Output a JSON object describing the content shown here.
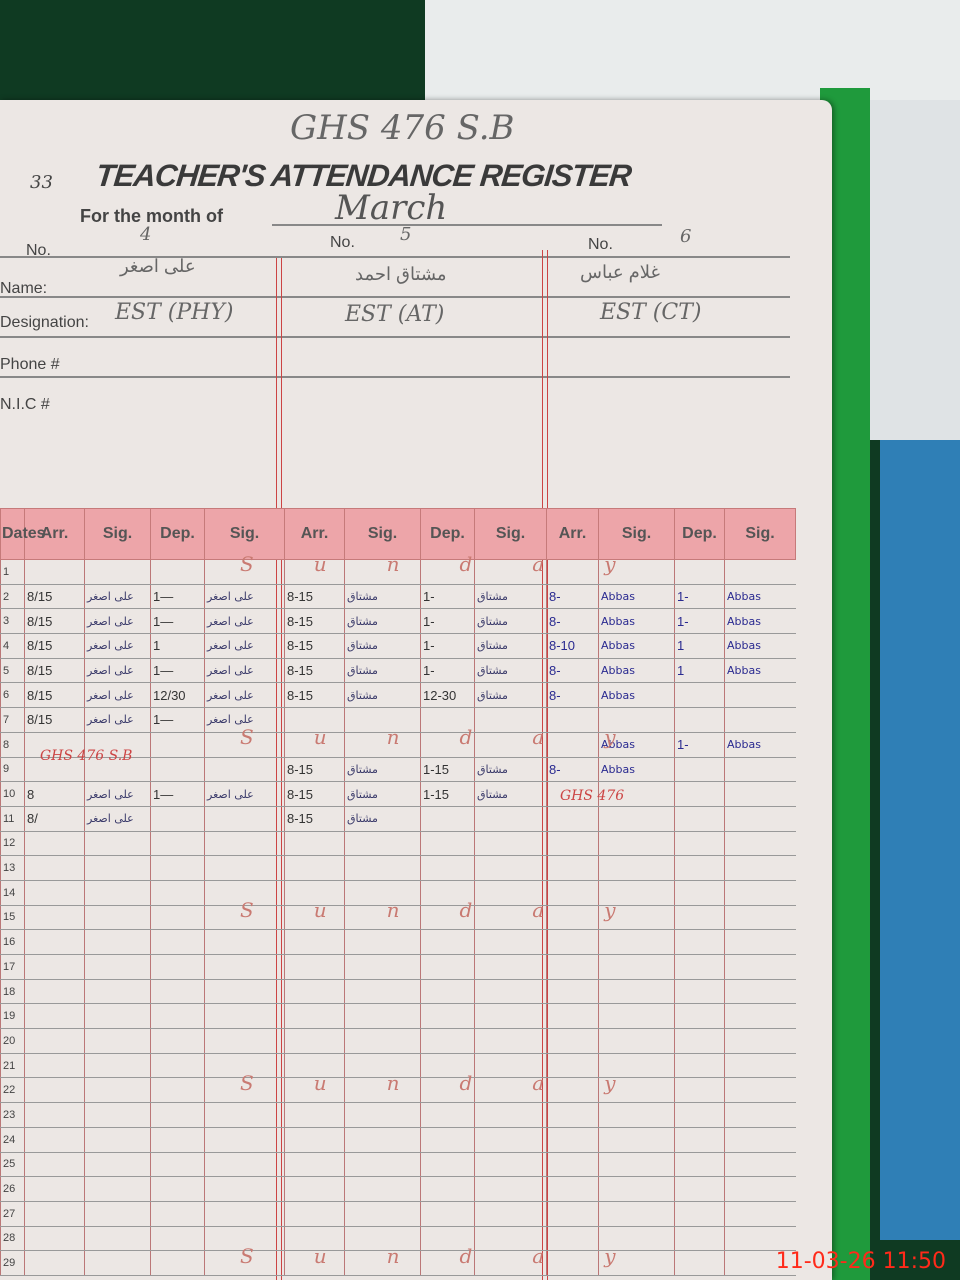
{
  "register": {
    "school": "GHS 476 S.B",
    "page_number": "33",
    "title": "TEACHER'S ATTENDANCE REGISTER",
    "month_label": "For the month of",
    "month": "March",
    "no_label": "No.",
    "name_label": "Name:",
    "designation_label": "Designation:",
    "phone_label": "Phone #",
    "nic_label": "N.I.C #",
    "date_header": "Dates",
    "teachers": [
      {
        "no": "4",
        "name": "علی اصغر",
        "designation": "EST (PHY)"
      },
      {
        "no": "5",
        "name": "مشتاق احمد",
        "designation": "EST (AT)"
      },
      {
        "no": "6",
        "name": "غلام عباس",
        "designation": "EST (CT)"
      }
    ],
    "columns": [
      "Arr.",
      "Sig.",
      "Dep.",
      "Sig."
    ],
    "rows": [
      {
        "d": "1",
        "c": [
          "",
          "",
          "",
          "",
          "",
          "",
          "",
          "",
          "",
          "",
          "",
          ""
        ]
      },
      {
        "d": "2",
        "c": [
          "8/15",
          "علی اصغر",
          "1—",
          "علی اصغر",
          "8-15",
          "مشتاق",
          "1-",
          "مشتاق",
          "8-",
          "Abbas",
          "1-",
          "Abbas"
        ]
      },
      {
        "d": "3",
        "c": [
          "8/15",
          "علی اصغر",
          "1—",
          "علی اصغر",
          "8-15",
          "مشتاق",
          "1-",
          "مشتاق",
          "8-",
          "Abbas",
          "1-",
          "Abbas"
        ]
      },
      {
        "d": "4",
        "c": [
          "8/15",
          "علی اصغر",
          "1",
          "علی اصغر",
          "8-15",
          "مشتاق",
          "1-",
          "مشتاق",
          "8-10",
          "Abbas",
          "1",
          "Abbas"
        ]
      },
      {
        "d": "5",
        "c": [
          "8/15",
          "علی اصغر",
          "1—",
          "علی اصغر",
          "8-15",
          "مشتاق",
          "1-",
          "مشتاق",
          "8-",
          "Abbas",
          "1",
          "Abbas"
        ]
      },
      {
        "d": "6",
        "c": [
          "8/15",
          "علی اصغر",
          "12/30",
          "علی اصغر",
          "8-15",
          "مشتاق",
          "12-30",
          "مشتاق",
          "8-",
          "Abbas",
          "",
          ""
        ]
      },
      {
        "d": "7",
        "c": [
          "8/15",
          "علی اصغر",
          "1—",
          "علی اصغر",
          "",
          "",
          "",
          "",
          "",
          "",
          "",
          ""
        ]
      },
      {
        "d": "8",
        "c": [
          "",
          "",
          "",
          "",
          "",
          "",
          "",
          "",
          "",
          "Abbas",
          "1-",
          "Abbas"
        ]
      },
      {
        "d": "9",
        "c": [
          "",
          "",
          "",
          "",
          "8-15",
          "مشتاق",
          "1-15",
          "مشتاق",
          "8-",
          "Abbas",
          "",
          ""
        ]
      },
      {
        "d": "10",
        "c": [
          "8",
          "علی اصغر",
          "1—",
          "علی اصغر",
          "8-15",
          "مشتاق",
          "1-15",
          "مشتاق",
          "",
          "",
          "",
          ""
        ]
      },
      {
        "d": "11",
        "c": [
          "8/",
          "علی اصغر",
          "",
          "",
          "8-15",
          "مشتاق",
          "",
          "",
          "",
          "",
          "",
          ""
        ]
      },
      {
        "d": "12",
        "c": [
          "",
          "",
          "",
          "",
          "",
          "",
          "",
          "",
          "",
          "",
          "",
          ""
        ]
      },
      {
        "d": "13",
        "c": [
          "",
          "",
          "",
          "",
          "",
          "",
          "",
          "",
          "",
          "",
          "",
          ""
        ]
      },
      {
        "d": "14",
        "c": [
          "",
          "",
          "",
          "",
          "",
          "",
          "",
          "",
          "",
          "",
          "",
          ""
        ]
      },
      {
        "d": "15",
        "c": [
          "",
          "",
          "",
          "",
          "",
          "",
          "",
          "",
          "",
          "",
          "",
          ""
        ]
      },
      {
        "d": "16",
        "c": [
          "",
          "",
          "",
          "",
          "",
          "",
          "",
          "",
          "",
          "",
          "",
          ""
        ]
      },
      {
        "d": "17",
        "c": [
          "",
          "",
          "",
          "",
          "",
          "",
          "",
          "",
          "",
          "",
          "",
          ""
        ]
      },
      {
        "d": "18",
        "c": [
          "",
          "",
          "",
          "",
          "",
          "",
          "",
          "",
          "",
          "",
          "",
          ""
        ]
      },
      {
        "d": "19",
        "c": [
          "",
          "",
          "",
          "",
          "",
          "",
          "",
          "",
          "",
          "",
          "",
          ""
        ]
      },
      {
        "d": "20",
        "c": [
          "",
          "",
          "",
          "",
          "",
          "",
          "",
          "",
          "",
          "",
          "",
          ""
        ]
      },
      {
        "d": "21",
        "c": [
          "",
          "",
          "",
          "",
          "",
          "",
          "",
          "",
          "",
          "",
          "",
          ""
        ]
      },
      {
        "d": "22",
        "c": [
          "",
          "",
          "",
          "",
          "",
          "",
          "",
          "",
          "",
          "",
          "",
          ""
        ]
      },
      {
        "d": "23",
        "c": [
          "",
          "",
          "",
          "",
          "",
          "",
          "",
          "",
          "",
          "",
          "",
          ""
        ]
      },
      {
        "d": "24",
        "c": [
          "",
          "",
          "",
          "",
          "",
          "",
          "",
          "",
          "",
          "",
          "",
          ""
        ]
      },
      {
        "d": "25",
        "c": [
          "",
          "",
          "",
          "",
          "",
          "",
          "",
          "",
          "",
          "",
          "",
          ""
        ]
      },
      {
        "d": "26",
        "c": [
          "",
          "",
          "",
          "",
          "",
          "",
          "",
          "",
          "",
          "",
          "",
          ""
        ]
      },
      {
        "d": "27",
        "c": [
          "",
          "",
          "",
          "",
          "",
          "",
          "",
          "",
          "",
          "",
          "",
          ""
        ]
      },
      {
        "d": "28",
        "c": [
          "",
          "",
          "",
          "",
          "",
          "",
          "",
          "",
          "",
          "",
          "",
          ""
        ]
      },
      {
        "d": "29",
        "c": [
          "",
          "",
          "",
          "",
          "",
          "",
          "",
          "",
          "",
          "",
          "",
          ""
        ]
      }
    ],
    "sunday_marks": [
      {
        "row": "1",
        "text": "Sunday"
      },
      {
        "row": "8",
        "text": "Sunday"
      },
      {
        "row": "15",
        "text": "Sunday"
      },
      {
        "row": "22",
        "text": "Sunday"
      },
      {
        "row": "29",
        "text": "Sunday"
      }
    ],
    "stamps": [
      "GHS 476 S.B",
      "GHS 476"
    ]
  },
  "camera_timestamp": "11-03-26  11:50"
}
